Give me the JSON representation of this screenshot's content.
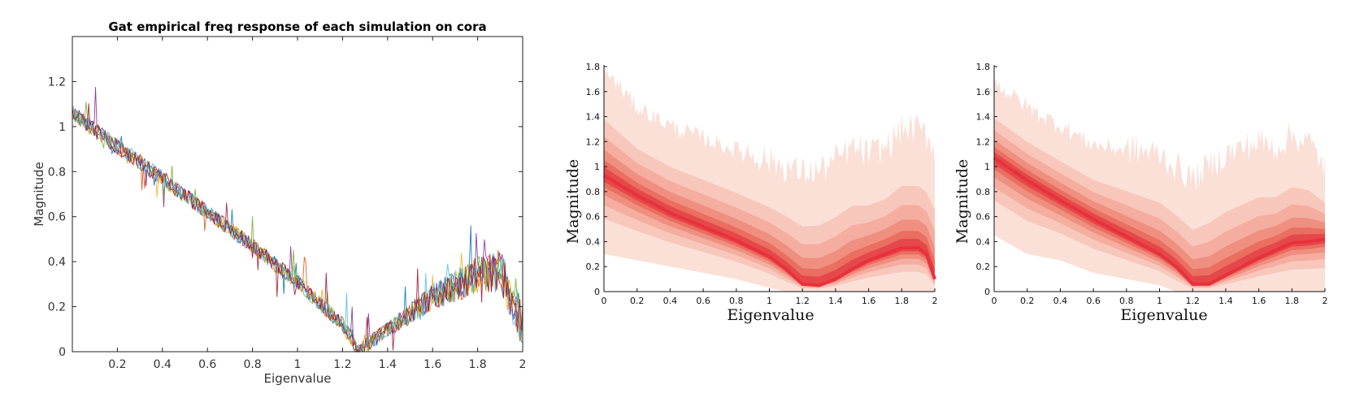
{
  "colors": {
    "series": [
      "#0072BD",
      "#D95319",
      "#EDB120",
      "#7E2F8E",
      "#77AC30",
      "#4DBEEE",
      "#A2142F"
    ],
    "band": [
      "#fbe0d8",
      "#f8c7bc",
      "#f4ad9f",
      "#ef8f80",
      "#ea6e62",
      "#e5484a"
    ],
    "median": "#e8313d"
  },
  "chart_data": [
    {
      "type": "line",
      "title": "Gat empirical freq response of each simulation on cora",
      "xlabel": "Eigenvalue",
      "ylabel": "Magnitude",
      "xlim": [
        0,
        2
      ],
      "ylim": [
        0,
        1.4
      ],
      "xticks": [
        "0.2",
        "0.4",
        "0.6",
        "0.8",
        "1",
        "1.2",
        "1.4",
        "1.6",
        "1.8",
        "2"
      ],
      "yticks": [
        "0",
        "0.2",
        "0.4",
        "0.6",
        "0.8",
        "1",
        "1.2"
      ],
      "n_series": 7,
      "trend": {
        "x": [
          0,
          0.2,
          0.4,
          0.6,
          0.8,
          1.0,
          1.2,
          1.27,
          1.4,
          1.6,
          1.8,
          1.9,
          2.0
        ],
        "y": [
          1.06,
          0.91,
          0.77,
          0.62,
          0.47,
          0.31,
          0.12,
          0.0,
          0.1,
          0.24,
          0.34,
          0.36,
          0.12
        ]
      }
    },
    {
      "type": "area",
      "title": "",
      "xlabel": "Eigenvalue",
      "ylabel": "Magnitude",
      "xlim": [
        0,
        2
      ],
      "ylim": [
        0,
        1.8
      ],
      "xticks": [
        "0",
        "0.2",
        "0.4",
        "0.6",
        "0.8",
        "1",
        "1.2",
        "1.4",
        "1.6",
        "1.8",
        "2"
      ],
      "yticks": [
        "0",
        "0.2",
        "0.4",
        "0.6",
        "0.8",
        "1",
        "1.2",
        "1.4",
        "1.6",
        "1.8"
      ],
      "median": {
        "x": [
          0,
          0.2,
          0.4,
          0.6,
          0.8,
          1.0,
          1.1,
          1.2,
          1.3,
          1.4,
          1.5,
          1.6,
          1.7,
          1.8,
          1.9,
          1.95,
          2.0
        ],
        "y": [
          0.93,
          0.77,
          0.63,
          0.52,
          0.41,
          0.28,
          0.18,
          0.06,
          0.05,
          0.1,
          0.18,
          0.25,
          0.3,
          0.35,
          0.35,
          0.3,
          0.1
        ]
      },
      "outer": {
        "upper": [
          1.75,
          1.45,
          1.3,
          1.2,
          1.1,
          1.0,
          0.95,
          0.9,
          0.92,
          1.0,
          1.1,
          1.05,
          1.1,
          1.25,
          1.25,
          1.2,
          1.1
        ],
        "lower": [
          0.3,
          0.25,
          0.2,
          0.15,
          0.1,
          0.03,
          0.0,
          0.0,
          0.0,
          0.0,
          0.0,
          0.0,
          0.0,
          0.0,
          0.0,
          0.0,
          0.0
        ]
      }
    },
    {
      "type": "area",
      "title": "",
      "xlabel": "Eigenvalue",
      "ylabel": "Magnitude",
      "xlim": [
        0,
        2
      ],
      "ylim": [
        0,
        1.8
      ],
      "xticks": [
        "0",
        "0.2",
        "0.4",
        "0.6",
        "0.8",
        "1",
        "1.2",
        "1.4",
        "1.6",
        "1.8",
        "2"
      ],
      "yticks": [
        "0",
        "0.2",
        "0.4",
        "0.6",
        "0.8",
        "1",
        "1.2",
        "1.4",
        "1.6",
        "1.8"
      ],
      "median": {
        "x": [
          0,
          0.2,
          0.4,
          0.6,
          0.8,
          1.0,
          1.1,
          1.2,
          1.3,
          1.4,
          1.5,
          1.6,
          1.7,
          1.8,
          1.9,
          1.95,
          2.0
        ],
        "y": [
          1.07,
          0.89,
          0.73,
          0.58,
          0.44,
          0.3,
          0.2,
          0.06,
          0.06,
          0.13,
          0.2,
          0.27,
          0.33,
          0.39,
          0.4,
          0.41,
          0.42
        ]
      },
      "outer": {
        "upper": [
          1.65,
          1.45,
          1.3,
          1.15,
          1.1,
          1.05,
          0.95,
          0.85,
          0.95,
          1.05,
          1.1,
          1.15,
          1.1,
          1.2,
          1.15,
          1.05,
          0.95
        ],
        "lower": [
          0.45,
          0.3,
          0.25,
          0.15,
          0.1,
          0.05,
          0.0,
          0.0,
          0.0,
          0.0,
          0.0,
          0.0,
          0.0,
          0.0,
          0.0,
          0.0,
          0.0
        ]
      }
    }
  ]
}
